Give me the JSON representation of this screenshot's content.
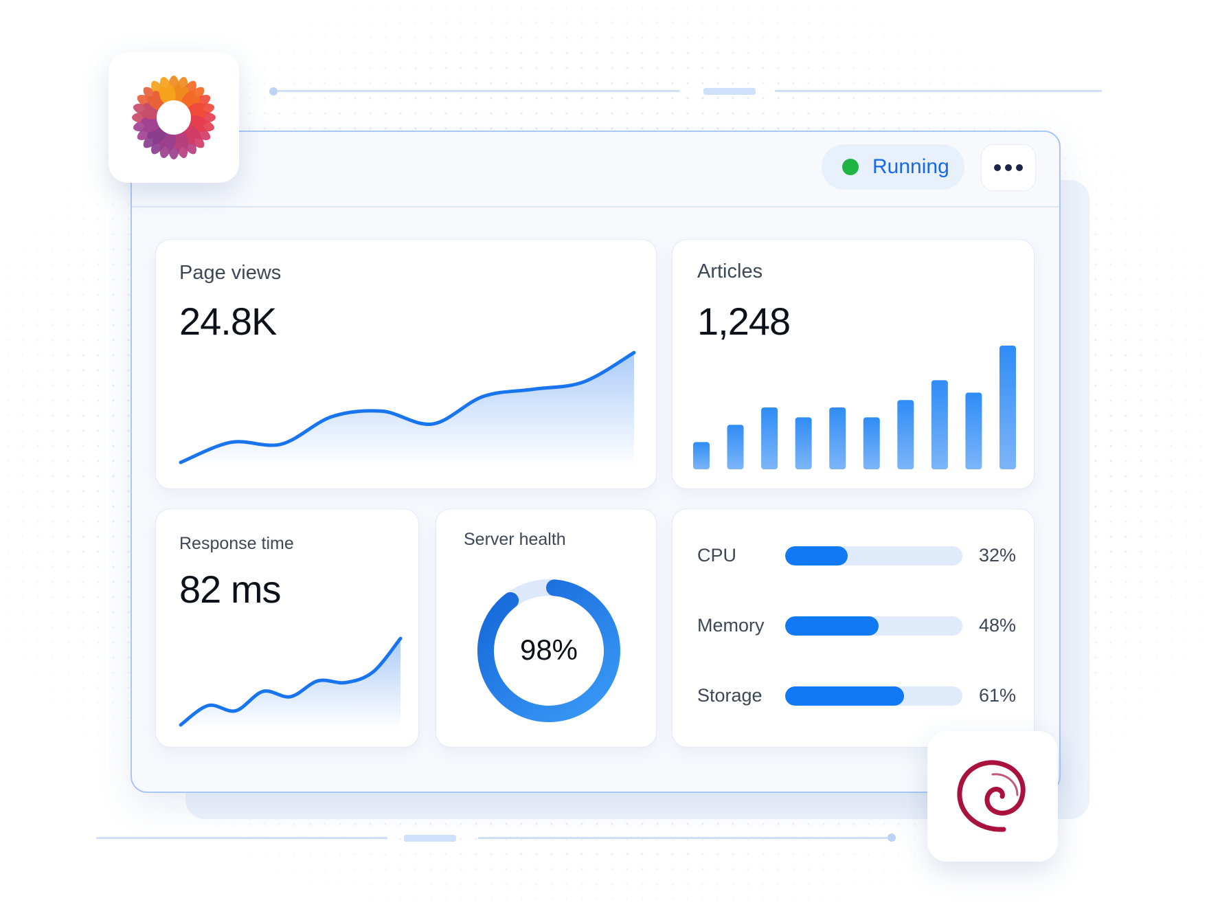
{
  "status": {
    "label": "Running",
    "color": "#1fb344"
  },
  "menu": {
    "icon": "more-horizontal-icon"
  },
  "page_views": {
    "label": "Page views",
    "value": "24.8K"
  },
  "articles": {
    "label": "Articles",
    "value": "1,248"
  },
  "response_time": {
    "label": "Response time",
    "value": "82 ms"
  },
  "server_health": {
    "label": "Server health",
    "value": "98%",
    "percent": 98
  },
  "resources": [
    {
      "label": "CPU",
      "value": "32%",
      "percent": 32
    },
    {
      "label": "Memory",
      "value": "48%",
      "percent": 48
    },
    {
      "label": "Storage",
      "value": "61%",
      "percent": 61
    }
  ],
  "logos": {
    "top_left": "sunflower-logo-icon",
    "bottom_right": "debian-swirl-logo-icon"
  },
  "colors": {
    "accent": "#1769e8",
    "bar": "#1279f4",
    "track": "#dfeafb",
    "dot_running": "#1fb344",
    "debian": "#a8123d"
  },
  "chart_data": [
    {
      "type": "area",
      "x": [
        1,
        2,
        3,
        4,
        5,
        6,
        7,
        8,
        9,
        10
      ],
      "values": [
        2,
        24,
        22,
        52,
        58,
        44,
        74,
        82,
        90,
        122
      ]
    },
    {
      "type": "bar",
      "x": [
        1,
        2,
        3,
        4,
        5,
        6,
        7,
        8,
        9,
        10
      ],
      "values": [
        22,
        36,
        50,
        42,
        50,
        42,
        56,
        72,
        62,
        100
      ]
    },
    {
      "type": "area",
      "x": [
        1,
        2,
        3,
        4,
        5,
        6,
        7,
        8,
        9
      ],
      "values": [
        2,
        24,
        18,
        40,
        34,
        52,
        50,
        62,
        100
      ]
    }
  ]
}
